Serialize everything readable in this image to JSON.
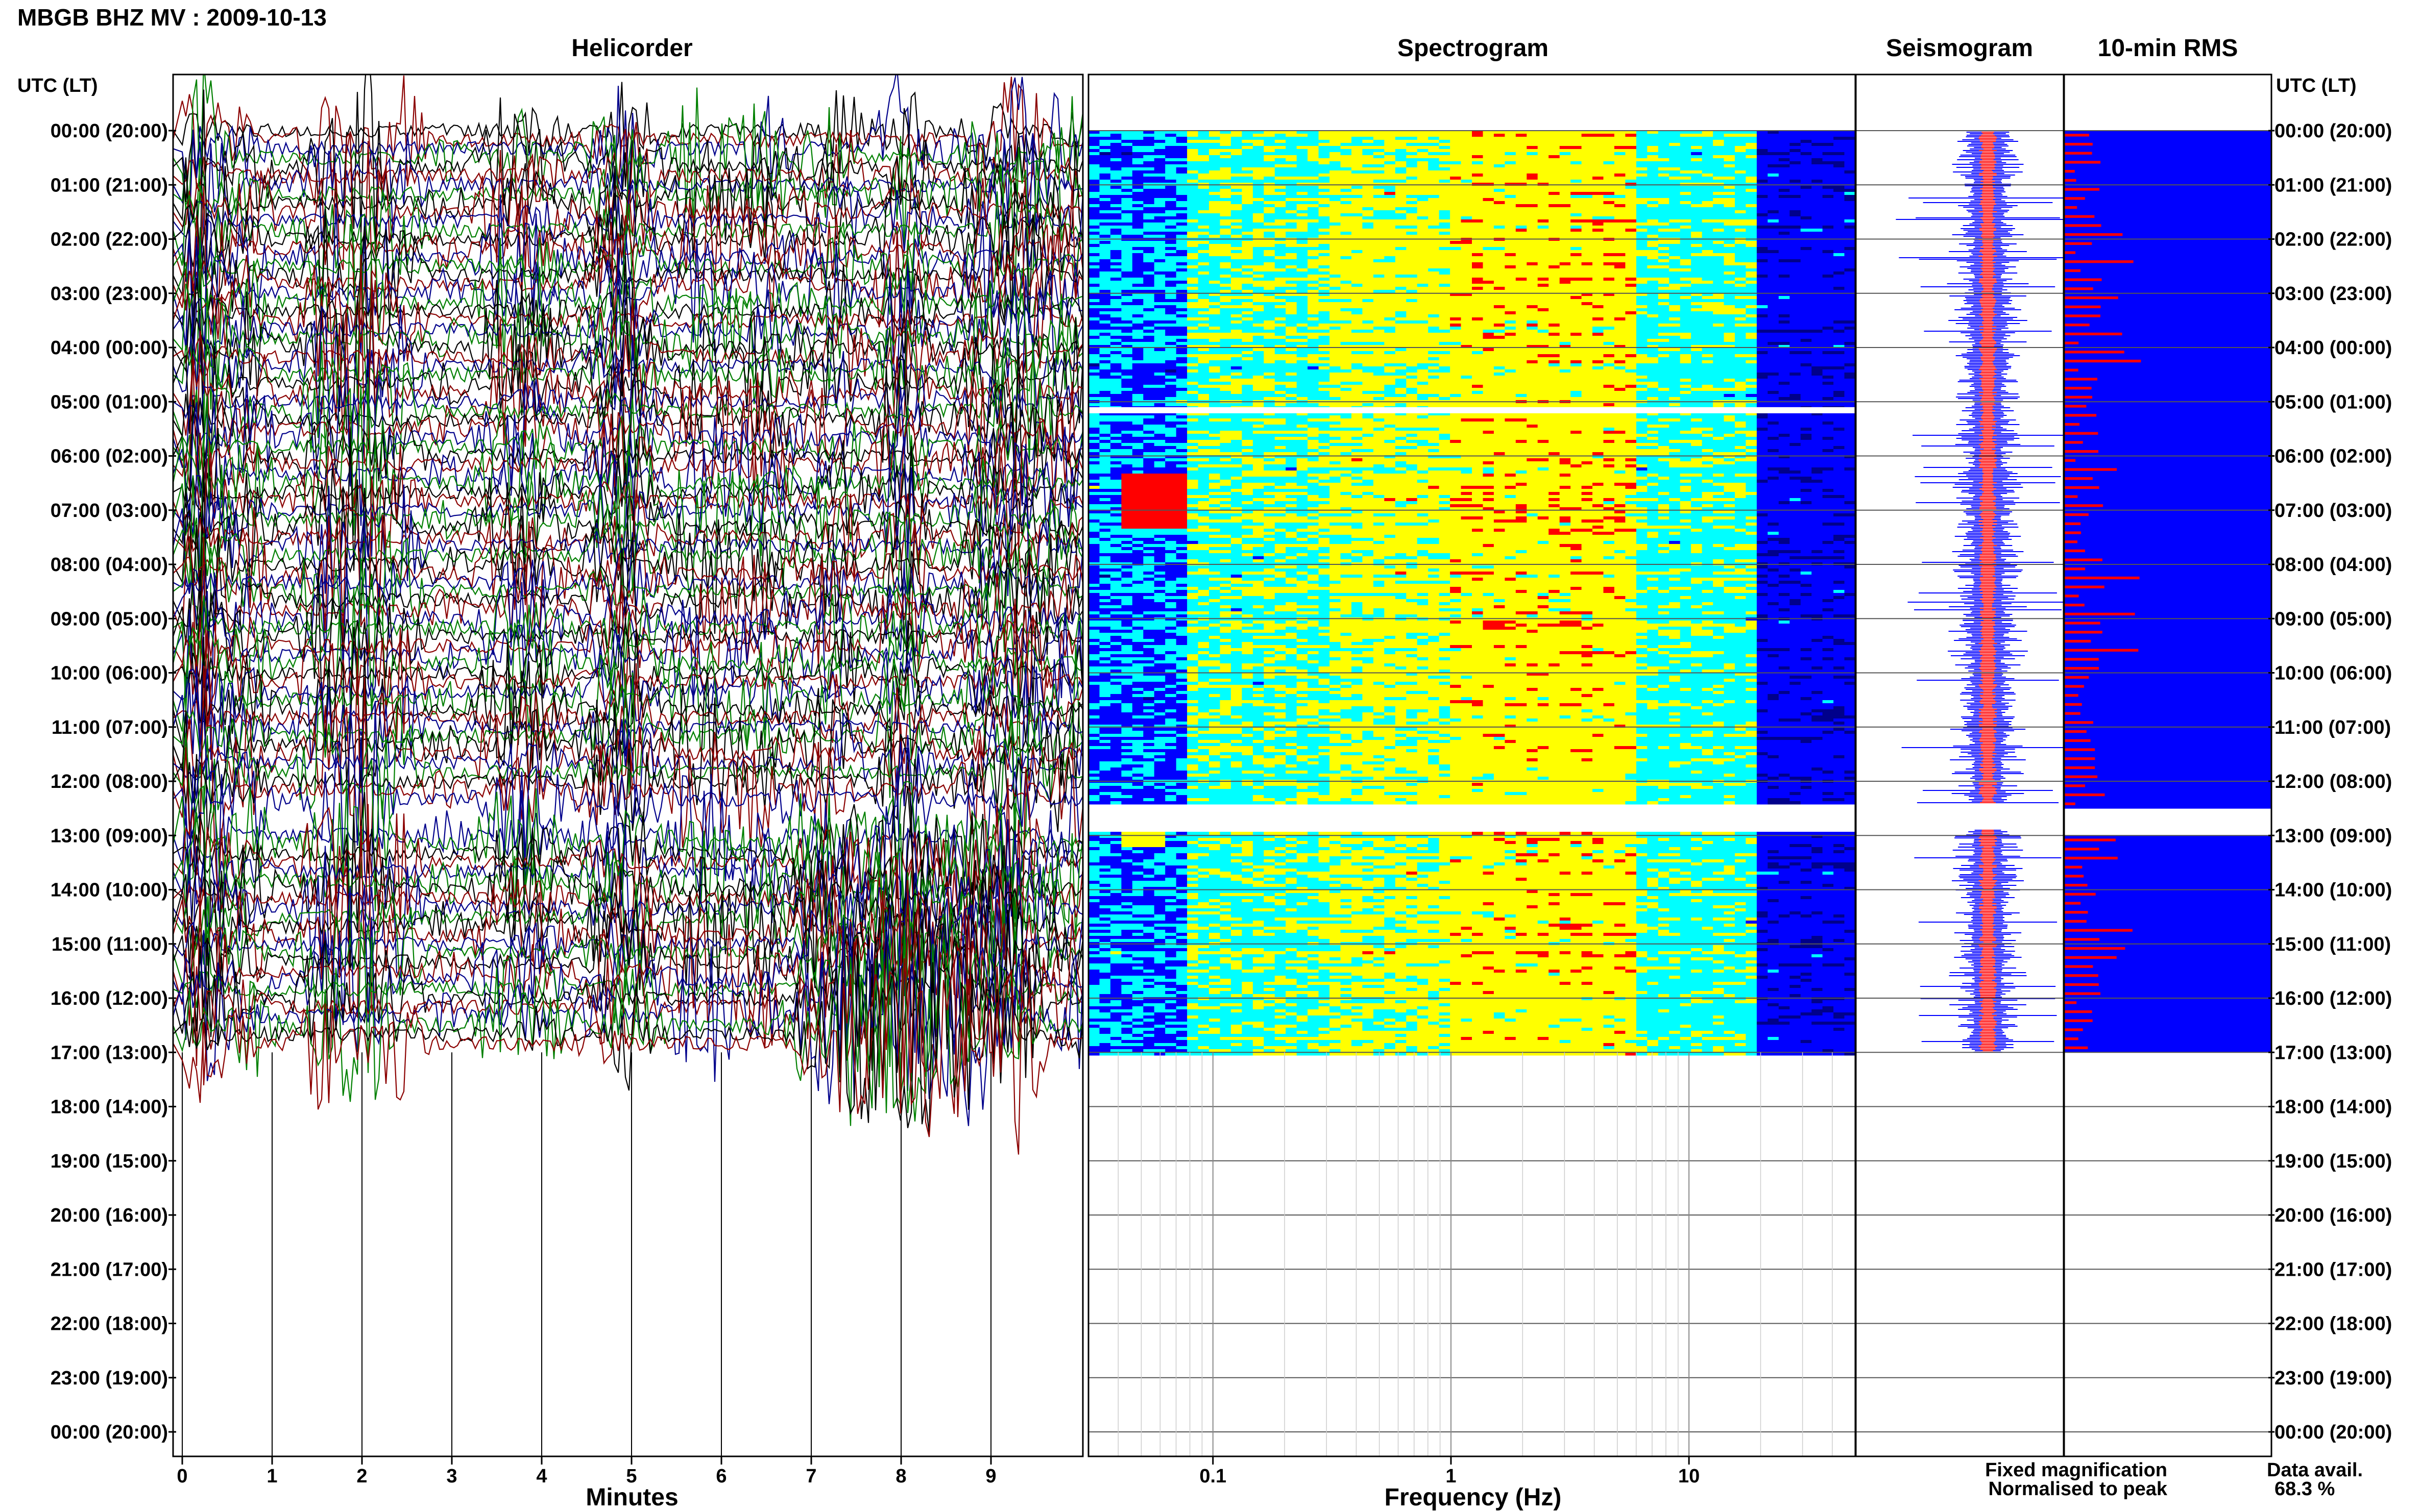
{
  "header": {
    "station_title": "MBGB BHZ MV : 2009-10-13",
    "utc_label_left": "UTC (LT)",
    "utc_label_right": "UTC (LT)"
  },
  "panels": {
    "helicorder": "Helicorder",
    "spectrogram": "Spectrogram",
    "seismogram": "Seismogram",
    "rms": "10-min RMS"
  },
  "time_labels": [
    "00:00 (20:00)",
    "01:00 (21:00)",
    "02:00 (22:00)",
    "03:00 (23:00)",
    "04:00 (00:00)",
    "05:00 (01:00)",
    "06:00 (02:00)",
    "07:00 (03:00)",
    "08:00 (04:00)",
    "09:00 (05:00)",
    "10:00 (06:00)",
    "11:00 (07:00)",
    "12:00 (08:00)",
    "13:00 (09:00)",
    "14:00 (10:00)",
    "15:00 (11:00)",
    "16:00 (12:00)",
    "17:00 (13:00)",
    "18:00 (14:00)",
    "19:00 (15:00)",
    "20:00 (16:00)",
    "21:00 (17:00)",
    "22:00 (18:00)",
    "23:00 (19:00)",
    "00:00 (20:00)"
  ],
  "helicorder_axis": {
    "label": "Minutes",
    "ticks": [
      "0",
      "1",
      "2",
      "3",
      "4",
      "5",
      "6",
      "7",
      "8",
      "9"
    ]
  },
  "spectrogram_axis": {
    "label": "Frequency (Hz)",
    "ticks": [
      "0.1",
      "1",
      "10"
    ]
  },
  "legend": {
    "fixed": "Fixed magnification",
    "normalised": "Normalised to peak",
    "fixed_color": "#0000ff",
    "normalised_color": "#ff0000"
  },
  "data_avail": {
    "label": "Data avail.",
    "value": "68.3 %"
  },
  "chart_data": {
    "type": "heatmap",
    "title": "MBGB BHZ MV : 2009-10-13",
    "recorded_hours_utc": [
      0,
      17
    ],
    "data_gap_utc": [
      12.4,
      12.9
    ],
    "helicorder": {
      "xlabel": "Minutes",
      "xlim": [
        0,
        10
      ],
      "line_colors": [
        "#000000",
        "#8b0000",
        "#00008b",
        "#008000"
      ]
    },
    "spectrogram": {
      "xlabel": "Frequency (Hz)",
      "xscale": "log",
      "xlim": [
        0.03,
        50
      ],
      "colormap": [
        "#00008b",
        "#0000ff",
        "#00ffff",
        "#ffff00",
        "#ff0000"
      ]
    },
    "seismogram": {
      "fixed_color": "#0000ff",
      "normalised_color": "#ff0000"
    },
    "rms_10min": {
      "fixed_color": "#0000ff",
      "normalised_color": "#ff0000",
      "data_availability_percent": 68.3
    }
  }
}
